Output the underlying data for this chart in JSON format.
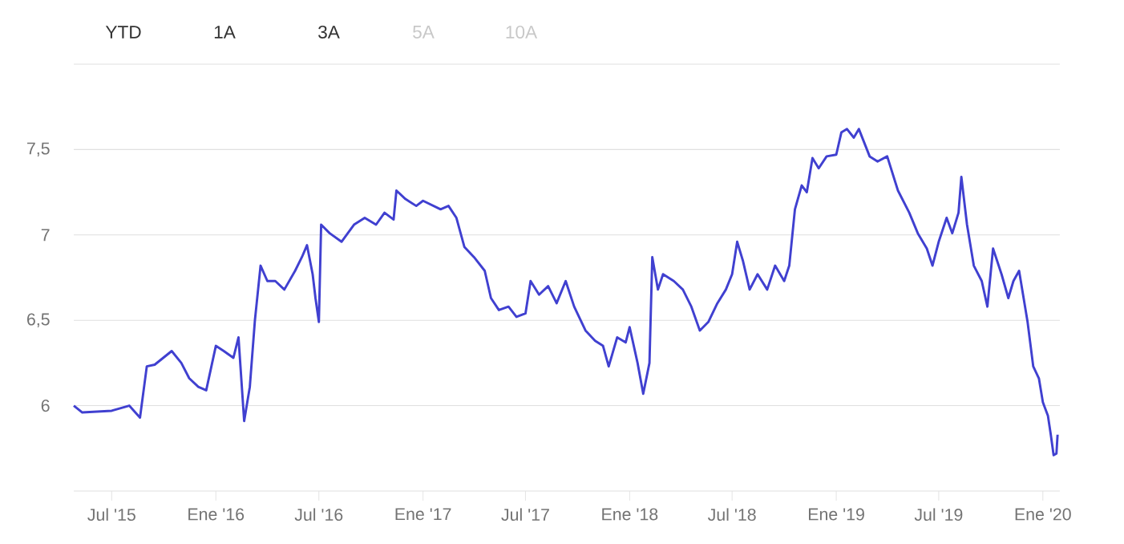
{
  "chart_data": {
    "type": "line",
    "annotations": [
      "YTD",
      "1A",
      "3A",
      "5A",
      "10A"
    ],
    "x": [
      "2015-04-25",
      "2015-05-10",
      "2015-07-01",
      "2015-08-01",
      "2015-08-20",
      "2015-09-01",
      "2015-09-15",
      "2015-10-15",
      "2015-11-01",
      "2015-11-15",
      "2015-12-01",
      "2015-12-15",
      "2016-01-01",
      "2016-01-15",
      "2016-02-01",
      "2016-02-10",
      "2016-02-20",
      "2016-03-01",
      "2016-03-10",
      "2016-03-20",
      "2016-04-01",
      "2016-04-15",
      "2016-05-01",
      "2016-05-20",
      "2016-06-01",
      "2016-06-10",
      "2016-06-20",
      "2016-06-25",
      "2016-07-01",
      "2016-07-05",
      "2016-07-20",
      "2016-08-10",
      "2016-09-01",
      "2016-09-20",
      "2016-10-10",
      "2016-10-25",
      "2016-11-10",
      "2016-11-15",
      "2016-12-01",
      "2016-12-20",
      "2017-01-01",
      "2017-02-01",
      "2017-02-15",
      "2017-03-01",
      "2017-03-15",
      "2017-04-01",
      "2017-04-20",
      "2017-05-01",
      "2017-05-15",
      "2017-06-01",
      "2017-06-15",
      "2017-07-01",
      "2017-07-10",
      "2017-07-25",
      "2017-08-10",
      "2017-08-25",
      "2017-09-10",
      "2017-09-25",
      "2017-10-15",
      "2017-11-01",
      "2017-11-15",
      "2017-11-25",
      "2017-12-10",
      "2017-12-25",
      "2018-01-01",
      "2018-01-15",
      "2018-01-25",
      "2018-02-05",
      "2018-02-10",
      "2018-02-20",
      "2018-03-01",
      "2018-03-20",
      "2018-04-05",
      "2018-04-20",
      "2018-05-05",
      "2018-05-20",
      "2018-06-05",
      "2018-06-20",
      "2018-07-01",
      "2018-07-10",
      "2018-07-20",
      "2018-08-01",
      "2018-08-15",
      "2018-09-01",
      "2018-09-15",
      "2018-10-01",
      "2018-10-10",
      "2018-10-20",
      "2018-11-01",
      "2018-11-10",
      "2018-11-20",
      "2018-12-01",
      "2018-12-15",
      "2019-01-01",
      "2019-01-10",
      "2019-01-20",
      "2019-02-01",
      "2019-02-10",
      "2019-03-01",
      "2019-03-15",
      "2019-04-01",
      "2019-04-20",
      "2019-05-10",
      "2019-05-25",
      "2019-06-10",
      "2019-06-20",
      "2019-07-01",
      "2019-07-15",
      "2019-07-25",
      "2019-08-05",
      "2019-08-10",
      "2019-08-20",
      "2019-09-01",
      "2019-09-15",
      "2019-09-25",
      "2019-10-05",
      "2019-10-20",
      "2019-11-01",
      "2019-11-10",
      "2019-11-20",
      "2019-11-28",
      "2019-12-05",
      "2019-12-15",
      "2019-12-25",
      "2020-01-01",
      "2020-01-10",
      "2020-01-15",
      "2020-01-20",
      "2020-01-25",
      "2020-01-27"
    ],
    "series": [
      {
        "color": "#4040d0",
        "values": [
          6.0,
          5.96,
          5.97,
          6.0,
          5.93,
          6.23,
          6.24,
          6.32,
          6.25,
          6.16,
          6.11,
          6.09,
          6.35,
          6.32,
          6.28,
          6.4,
          5.91,
          6.11,
          6.5,
          6.82,
          6.73,
          6.73,
          6.68,
          6.79,
          6.87,
          6.94,
          6.77,
          6.63,
          6.49,
          7.06,
          7.01,
          6.96,
          7.06,
          7.1,
          7.06,
          7.13,
          7.09,
          7.26,
          7.21,
          7.17,
          7.2,
          7.15,
          7.17,
          7.1,
          6.93,
          6.87,
          6.79,
          6.63,
          6.56,
          6.58,
          6.52,
          6.54,
          6.73,
          6.65,
          6.7,
          6.6,
          6.73,
          6.58,
          6.44,
          6.38,
          6.35,
          6.23,
          6.4,
          6.37,
          6.46,
          6.25,
          6.07,
          6.25,
          6.87,
          6.68,
          6.77,
          6.73,
          6.68,
          6.58,
          6.44,
          6.49,
          6.6,
          6.68,
          6.77,
          6.96,
          6.85,
          6.68,
          6.77,
          6.68,
          6.82,
          6.73,
          6.82,
          7.15,
          7.29,
          7.25,
          7.45,
          7.39,
          7.46,
          7.47,
          7.6,
          7.62,
          7.57,
          7.62,
          7.46,
          7.43,
          7.46,
          7.26,
          7.13,
          7.01,
          6.92,
          6.82,
          6.96,
          7.1,
          7.01,
          7.13,
          7.34,
          7.06,
          6.82,
          6.73,
          6.58,
          6.92,
          6.77,
          6.63,
          6.73,
          6.79,
          6.63,
          6.49,
          6.23,
          6.16,
          6.02,
          5.94,
          5.83,
          5.71,
          5.72,
          5.83
        ]
      }
    ],
    "xlim": [
      "2015-04-25",
      "2020-01-31"
    ],
    "xticks": [
      {
        "value": "2015-07-01",
        "label": "Jul '15"
      },
      {
        "value": "2016-01-01",
        "label": "Ene '16"
      },
      {
        "value": "2016-07-01",
        "label": "Jul '16"
      },
      {
        "value": "2017-01-01",
        "label": "Ene '17"
      },
      {
        "value": "2017-07-01",
        "label": "Jul '17"
      },
      {
        "value": "2018-01-01",
        "label": "Ene '18"
      },
      {
        "value": "2018-07-01",
        "label": "Jul '18"
      },
      {
        "value": "2019-01-01",
        "label": "Ene '19"
      },
      {
        "value": "2019-07-01",
        "label": "Jul '19"
      },
      {
        "value": "2020-01-01",
        "label": "Ene '20"
      }
    ],
    "ylim": [
      5.5,
      8
    ],
    "yticks": [
      6,
      {
        "value": 6.5,
        "label": "6,5"
      },
      7,
      {
        "value": 7.5,
        "label": "7,5"
      },
      {
        "value": 8,
        "label": null
      }
    ],
    "grid": "y",
    "marker": "none",
    "line_style": "solid"
  }
}
